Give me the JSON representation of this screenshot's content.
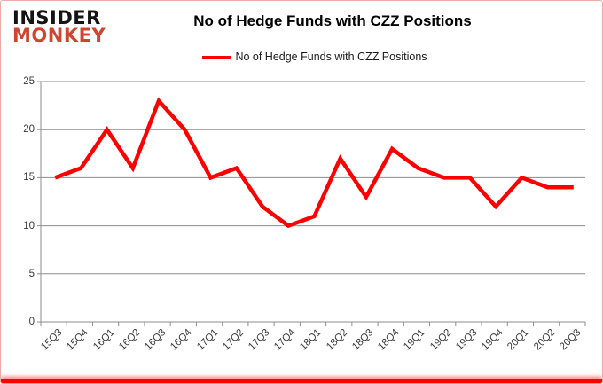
{
  "logo": {
    "line1": "INSIDER",
    "line2": "MONKEY"
  },
  "header": {
    "title": "No of Hedge Funds with CZZ Positions"
  },
  "legend": {
    "label": "No of Hedge Funds with CZZ Positions"
  },
  "colors": {
    "line": "#ff0000",
    "logo_insider": "#141414",
    "logo_monkey": "#d0452f",
    "grid": "#8c8c8c",
    "axis": "#8c8c8c",
    "tick_text": "#3a3a3a",
    "border_pink": "#eeaaa4",
    "bottom_bar": "#ff0000"
  },
  "chart_data": {
    "type": "line",
    "title": "No of Hedge Funds with CZZ Positions",
    "categories": [
      "15Q3",
      "15Q4",
      "16Q1",
      "16Q2",
      "16Q3",
      "16Q4",
      "17Q1",
      "17Q2",
      "17Q3",
      "17Q4",
      "18Q1",
      "18Q2",
      "18Q3",
      "18Q4",
      "19Q1",
      "19Q2",
      "19Q3",
      "19Q4",
      "20Q1",
      "20Q2",
      "20Q3"
    ],
    "series": [
      {
        "name": "No of Hedge Funds with CZZ Positions",
        "color": "#ff0000",
        "values": [
          15,
          16,
          20,
          16,
          23,
          20,
          15,
          16,
          12,
          10,
          11,
          17,
          13,
          18,
          16,
          15,
          15,
          12,
          15,
          14,
          14
        ]
      }
    ],
    "xlabel": "",
    "ylabel": "",
    "ylim": [
      0,
      25
    ],
    "yticks": [
      0,
      5,
      10,
      15,
      20,
      25
    ],
    "grid": true,
    "legend_position": "top"
  }
}
